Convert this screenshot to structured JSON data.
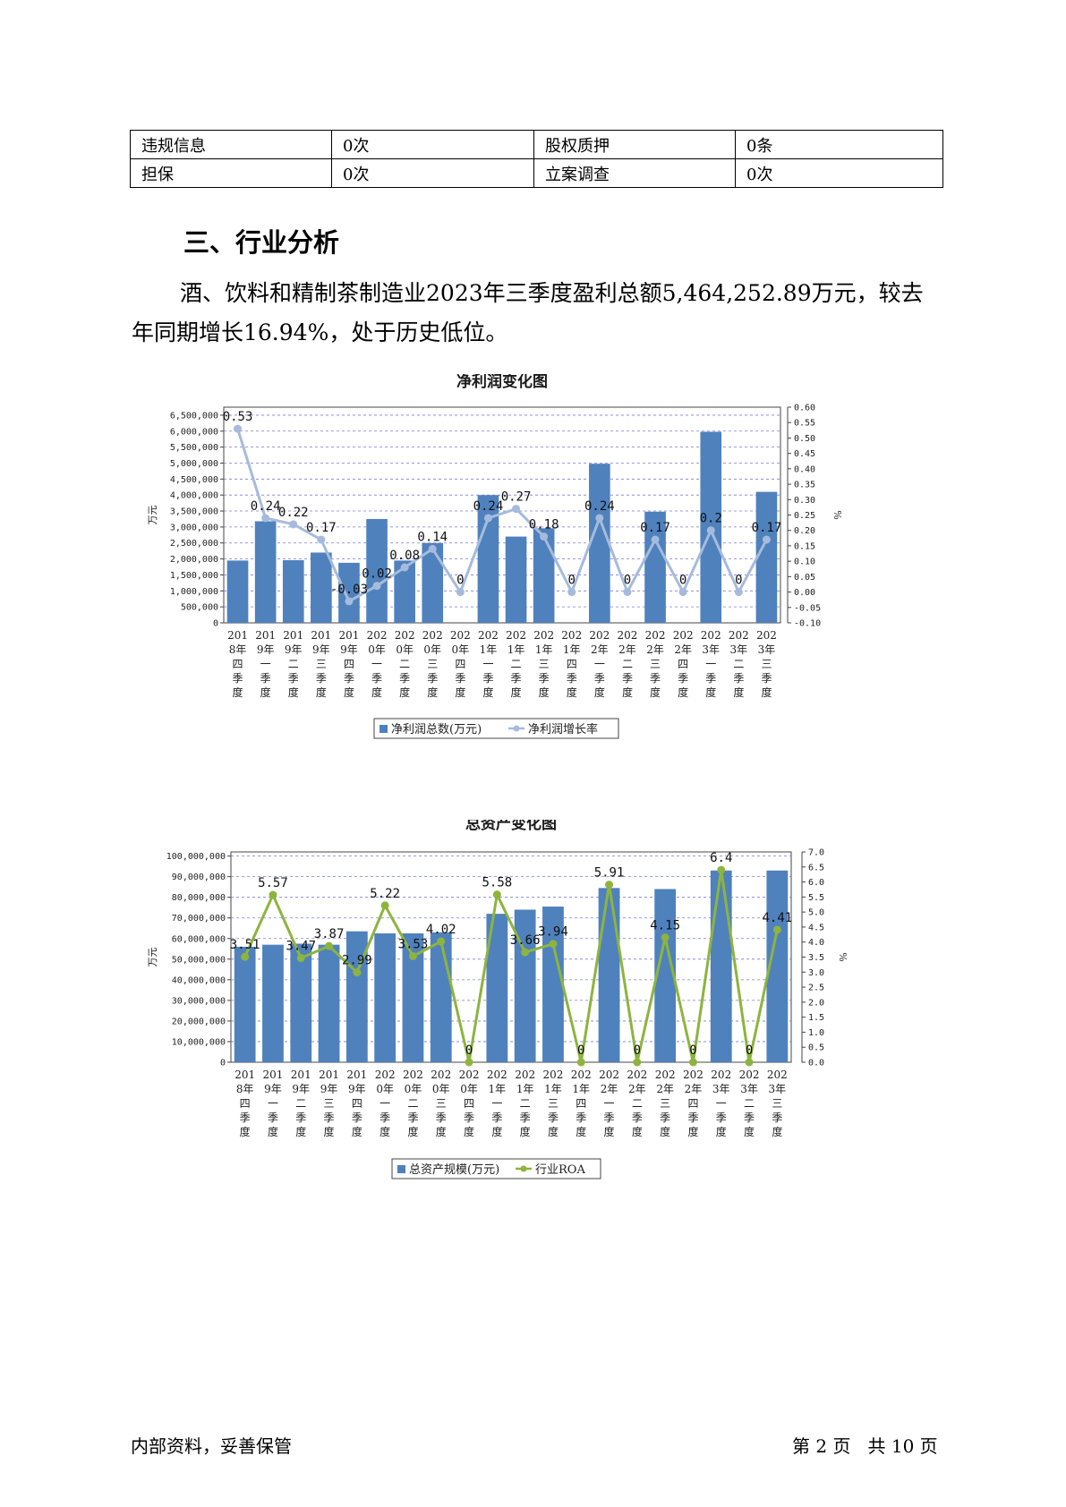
{
  "table": {
    "rows": [
      [
        "违规信息",
        "0次",
        "股权质押",
        "0条"
      ],
      [
        "担保",
        "0次",
        "立案调查",
        "0次"
      ]
    ]
  },
  "section_title": "三、行业分析",
  "paragraph": "酒、饮料和精制茶制造业2023年三季度盈利总额5,464,252.89万元，较去年同期增长16.94%，处于历史低位。",
  "chart_data": [
    {
      "type": "bar",
      "title": "净利润变化图",
      "categories": [
        "2018年四季度",
        "2019年一季度",
        "2019年二季度",
        "2019年三季度",
        "2019年四季度",
        "2020年一季度",
        "2020年二季度",
        "2020年三季度",
        "2020年四季度",
        "2021年一季度",
        "2021年二季度",
        "2021年三季度",
        "2021年四季度",
        "2022年一季度",
        "2022年二季度",
        "2022年三季度",
        "2022年四季度",
        "2023年一季度",
        "2023年二季度",
        "2023年三季度"
      ],
      "series": [
        {
          "name": "净利润总数(万元)",
          "type": "bar",
          "axis": "left",
          "color": "#4f81bd",
          "values": [
            1950000,
            3180000,
            1960000,
            2200000,
            1880000,
            3250000,
            1950000,
            2500000,
            0,
            4000000,
            2700000,
            2960000,
            0,
            4980000,
            0,
            3480000,
            0,
            5980000,
            0,
            4100000
          ]
        },
        {
          "name": "净利润增长率",
          "type": "line",
          "axis": "right",
          "color": "#a6bbdb",
          "values": [
            0.53,
            0.24,
            0.22,
            0.17,
            -0.03,
            0.02,
            0.08,
            0.14,
            0,
            0.24,
            0.27,
            0.18,
            0,
            0.24,
            0,
            0.17,
            0,
            0.2,
            0,
            0.17
          ],
          "labels": [
            "0.53",
            "0.24",
            "0.22",
            "0.17",
            "-0.03",
            "0.02",
            "0.08",
            "0.14",
            "0",
            "0.24",
            "0.27",
            "0.18",
            "0",
            "0.24",
            "0",
            "0.17",
            "0",
            "0.2",
            "0",
            "0.17"
          ]
        }
      ],
      "ylabel": "万元",
      "y2label": "%",
      "ylim": [
        0,
        6750000
      ],
      "yticks": [
        "0",
        "500,000",
        "1,000,000",
        "1,500,000",
        "2,000,000",
        "2,500,000",
        "3,000,000",
        "3,500,000",
        "4,000,000",
        "4,500,000",
        "5,000,000",
        "5,500,000",
        "6,000,000",
        "6,500,000"
      ],
      "y2lim": [
        -0.1,
        0.6
      ],
      "y2ticks": [
        "-0.10",
        "-0.05",
        "0.00",
        "0.05",
        "0.10",
        "0.15",
        "0.20",
        "0.25",
        "0.30",
        "0.35",
        "0.40",
        "0.45",
        "0.50",
        "0.55",
        "0.60"
      ],
      "grid": true,
      "legend_position": "bottom"
    },
    {
      "type": "bar",
      "title": "总资产变化图",
      "categories": [
        "2018年四季度",
        "2019年一季度",
        "2019年二季度",
        "2019年三季度",
        "2019年四季度",
        "2020年一季度",
        "2020年二季度",
        "2020年三季度",
        "2020年四季度",
        "2021年一季度",
        "2021年二季度",
        "2021年三季度",
        "2021年四季度",
        "2022年一季度",
        "2022年二季度",
        "2022年三季度",
        "2022年四季度",
        "2023年一季度",
        "2023年二季度",
        "2023年三季度"
      ],
      "series": [
        {
          "name": "总资产规模(万元)",
          "type": "bar",
          "axis": "left",
          "color": "#4f81bd",
          "values": [
            56000000,
            57000000,
            57500000,
            57000000,
            63500000,
            62500000,
            62500000,
            63000000,
            0,
            72000000,
            74000000,
            75500000,
            0,
            84500000,
            0,
            84000000,
            0,
            93000000,
            0,
            93000000
          ]
        },
        {
          "name": "行业ROA",
          "type": "line",
          "axis": "right",
          "color": "#8db43e",
          "values": [
            3.51,
            5.57,
            3.47,
            3.87,
            2.99,
            5.22,
            3.53,
            4.02,
            0,
            5.58,
            3.66,
            3.94,
            0,
            5.91,
            0,
            4.15,
            0,
            6.4,
            0,
            4.41
          ],
          "labels": [
            "3.51",
            "5.57",
            "3.47",
            "3.87",
            "2.99",
            "5.22",
            "3.53",
            "4.02",
            "0",
            "5.58",
            "3.66",
            "3.94",
            "0",
            "5.91",
            "0",
            "4.15",
            "0",
            "6.4",
            "0",
            "4.41"
          ]
        }
      ],
      "ylabel": "万元",
      "y2label": "%",
      "ylim": [
        0,
        102000000
      ],
      "yticks": [
        "0",
        "10,000,000",
        "20,000,000",
        "30,000,000",
        "40,000,000",
        "50,000,000",
        "60,000,000",
        "70,000,000",
        "80,000,000",
        "90,000,000",
        "100,000,000"
      ],
      "y2lim": [
        0,
        7.0
      ],
      "y2ticks": [
        "0.0",
        "0.5",
        "1.0",
        "1.5",
        "2.0",
        "2.5",
        "3.0",
        "3.5",
        "4.0",
        "4.5",
        "5.0",
        "5.5",
        "6.0",
        "6.5",
        "7.0"
      ],
      "grid": true,
      "legend_position": "bottom"
    }
  ],
  "footer": {
    "left": "内部资料，妥善保管",
    "right": "第 2 页   共 10 页"
  }
}
